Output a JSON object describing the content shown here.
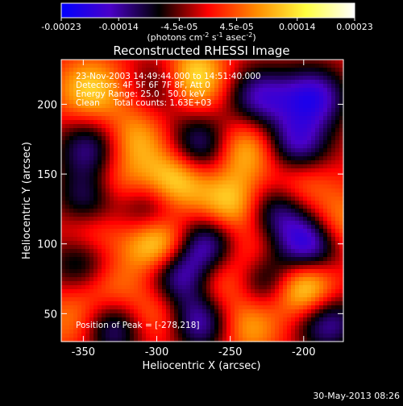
{
  "colorbar": {
    "tick_labels": [
      "-0.00023",
      "-0.00014",
      "-4.5e-05",
      "4.5e-05",
      "0.00014",
      "0.00023"
    ],
    "unit_label": "(photons cm",
    "unit_sup1": "-2",
    "unit_mid": " s",
    "unit_sup2": "-1",
    "unit_end": " asec",
    "unit_sup3": "-2",
    "unit_close": ")",
    "range": [
      -0.00023,
      0.00023
    ],
    "stops": [
      "#0000ff",
      "#4a00c8",
      "#000000",
      "#ff0000",
      "#ff8c00",
      "#ffff40",
      "#ffffff"
    ]
  },
  "chart_data": {
    "type": "heatmap",
    "title": "Reconstructed RHESSI Image",
    "xlabel": "Heliocentric X (arcsec)",
    "ylabel": "Heliocentric Y (arcsec)",
    "xlim": [
      -365,
      -173
    ],
    "ylim": [
      30,
      232
    ],
    "x_ticks": [
      -350,
      -300,
      -250,
      -200
    ],
    "y_ticks": [
      50,
      100,
      150,
      200
    ],
    "annotations": [
      "23-Nov-2003 14:49:44.000 to 14:51:40.000",
      "Detectors: 4F 5F 6F 7F 8F, Att 0",
      "Energy Range: 25.0 - 50.0 keV",
      "Clean     Total counts: 1.63E+03"
    ],
    "peak_text": "Position of Peak = [-278,218]",
    "peak": [
      -278,
      218
    ],
    "sources": [
      {
        "x": -278,
        "y": 218,
        "v": 1.0
      },
      {
        "x": -345,
        "y": 210,
        "v": 0.55
      },
      {
        "x": -315,
        "y": 175,
        "v": 0.45
      },
      {
        "x": -240,
        "y": 168,
        "v": 0.55
      },
      {
        "x": -328,
        "y": 140,
        "v": 0.45
      },
      {
        "x": -288,
        "y": 145,
        "v": 0.7
      },
      {
        "x": -205,
        "y": 142,
        "v": 0.45
      },
      {
        "x": -250,
        "y": 128,
        "v": 0.6
      },
      {
        "x": -345,
        "y": 108,
        "v": 0.5
      },
      {
        "x": -298,
        "y": 100,
        "v": 0.85
      },
      {
        "x": -178,
        "y": 112,
        "v": 0.5
      },
      {
        "x": -235,
        "y": 92,
        "v": 0.4
      },
      {
        "x": -332,
        "y": 70,
        "v": 0.35
      },
      {
        "x": -260,
        "y": 72,
        "v": 0.45
      },
      {
        "x": -200,
        "y": 68,
        "v": 0.9
      },
      {
        "x": -355,
        "y": 45,
        "v": 0.35
      },
      {
        "x": -300,
        "y": 50,
        "v": 0.4
      },
      {
        "x": -238,
        "y": 42,
        "v": 0.45
      },
      {
        "x": -290,
        "y": 215,
        "v": -0.7
      },
      {
        "x": -230,
        "y": 205,
        "v": -0.65
      },
      {
        "x": -193,
        "y": 205,
        "v": -0.75
      },
      {
        "x": -345,
        "y": 168,
        "v": -0.6
      },
      {
        "x": -270,
        "y": 170,
        "v": -0.65
      },
      {
        "x": -205,
        "y": 170,
        "v": -0.7
      },
      {
        "x": -345,
        "y": 130,
        "v": -0.7
      },
      {
        "x": -305,
        "y": 125,
        "v": -0.6
      },
      {
        "x": -218,
        "y": 125,
        "v": -0.65
      },
      {
        "x": -265,
        "y": 100,
        "v": -0.75
      },
      {
        "x": -195,
        "y": 100,
        "v": -0.95
      },
      {
        "x": -350,
        "y": 88,
        "v": -0.6
      },
      {
        "x": -285,
        "y": 78,
        "v": -0.8
      },
      {
        "x": -225,
        "y": 75,
        "v": -0.7
      },
      {
        "x": -330,
        "y": 40,
        "v": -0.65
      },
      {
        "x": -270,
        "y": 45,
        "v": -0.75
      },
      {
        "x": -185,
        "y": 45,
        "v": -0.7
      }
    ]
  },
  "footer": {
    "timestamp": "30-May-2013 08:26"
  }
}
